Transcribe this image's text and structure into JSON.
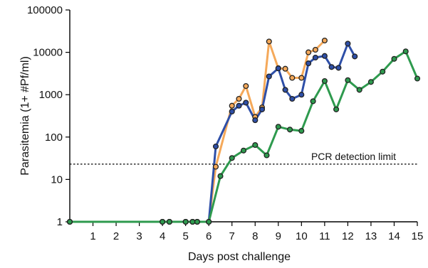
{
  "chart_data": {
    "type": "line",
    "xlabel": "Days post challenge",
    "ylabel": "Parasitemia (1+ #Pf/ml)",
    "xlim": [
      0,
      15
    ],
    "ylim": [
      1,
      100000
    ],
    "yscale": "log",
    "x_ticks": [
      1,
      2,
      3,
      4,
      5,
      6,
      7,
      8,
      9,
      10,
      11,
      12,
      13,
      14,
      15
    ],
    "x_tick_labels": [
      "1",
      "2",
      "3",
      "4",
      "5",
      "6",
      "7",
      "8",
      "9",
      "10",
      "11",
      "12",
      "13",
      "14",
      "15"
    ],
    "y_ticks": [
      1,
      10,
      100,
      1000,
      10000,
      100000
    ],
    "y_tick_labels": [
      "1",
      "10",
      "100",
      "1000",
      "10000",
      "100000"
    ],
    "grid": false,
    "legend": "none",
    "reference_line": {
      "y": 23,
      "label": "PCR detection limit"
    },
    "series": [
      {
        "color": "#f5a95a",
        "x": [
          0,
          4,
          4.3,
          5,
          5.3,
          5.5,
          6,
          6.3,
          7,
          7.3,
          7.6,
          8,
          8.3,
          8.6,
          9,
          9.3,
          9.6,
          10,
          10.3,
          10.6,
          11
        ],
        "y": [
          1,
          1,
          1,
          1,
          1,
          1,
          1,
          20,
          550,
          800,
          1600,
          300,
          500,
          18000,
          4200,
          4100,
          2500,
          2500,
          10000,
          11500,
          19000
        ]
      },
      {
        "color": "#2e4fa8",
        "x": [
          0,
          4,
          4.3,
          5,
          5.3,
          5.5,
          6,
          6.3,
          7,
          7.3,
          7.6,
          8,
          8.3,
          8.6,
          9,
          9.3,
          9.6,
          10,
          10.3,
          10.6,
          11,
          11.3,
          11.6,
          12,
          12.3
        ],
        "y": [
          1,
          1,
          1,
          1,
          1,
          1,
          1,
          60,
          400,
          550,
          650,
          250,
          450,
          2700,
          4200,
          1300,
          800,
          1000,
          5500,
          7500,
          8200,
          4500,
          4300,
          16000,
          8000
        ]
      },
      {
        "color": "#2e9a4e",
        "x": [
          0,
          4,
          4.3,
          5,
          5.3,
          5.5,
          6,
          6.5,
          7,
          7.5,
          8,
          8.5,
          9,
          9.5,
          10,
          10.5,
          11,
          11.5,
          12,
          12.5,
          13,
          13.5,
          14,
          14.5,
          15
        ],
        "y": [
          1,
          1,
          1,
          1,
          1,
          1,
          1,
          12,
          32,
          48,
          65,
          37,
          175,
          150,
          140,
          700,
          2100,
          450,
          2200,
          1300,
          2000,
          3500,
          7000,
          10500,
          2400
        ]
      }
    ]
  }
}
